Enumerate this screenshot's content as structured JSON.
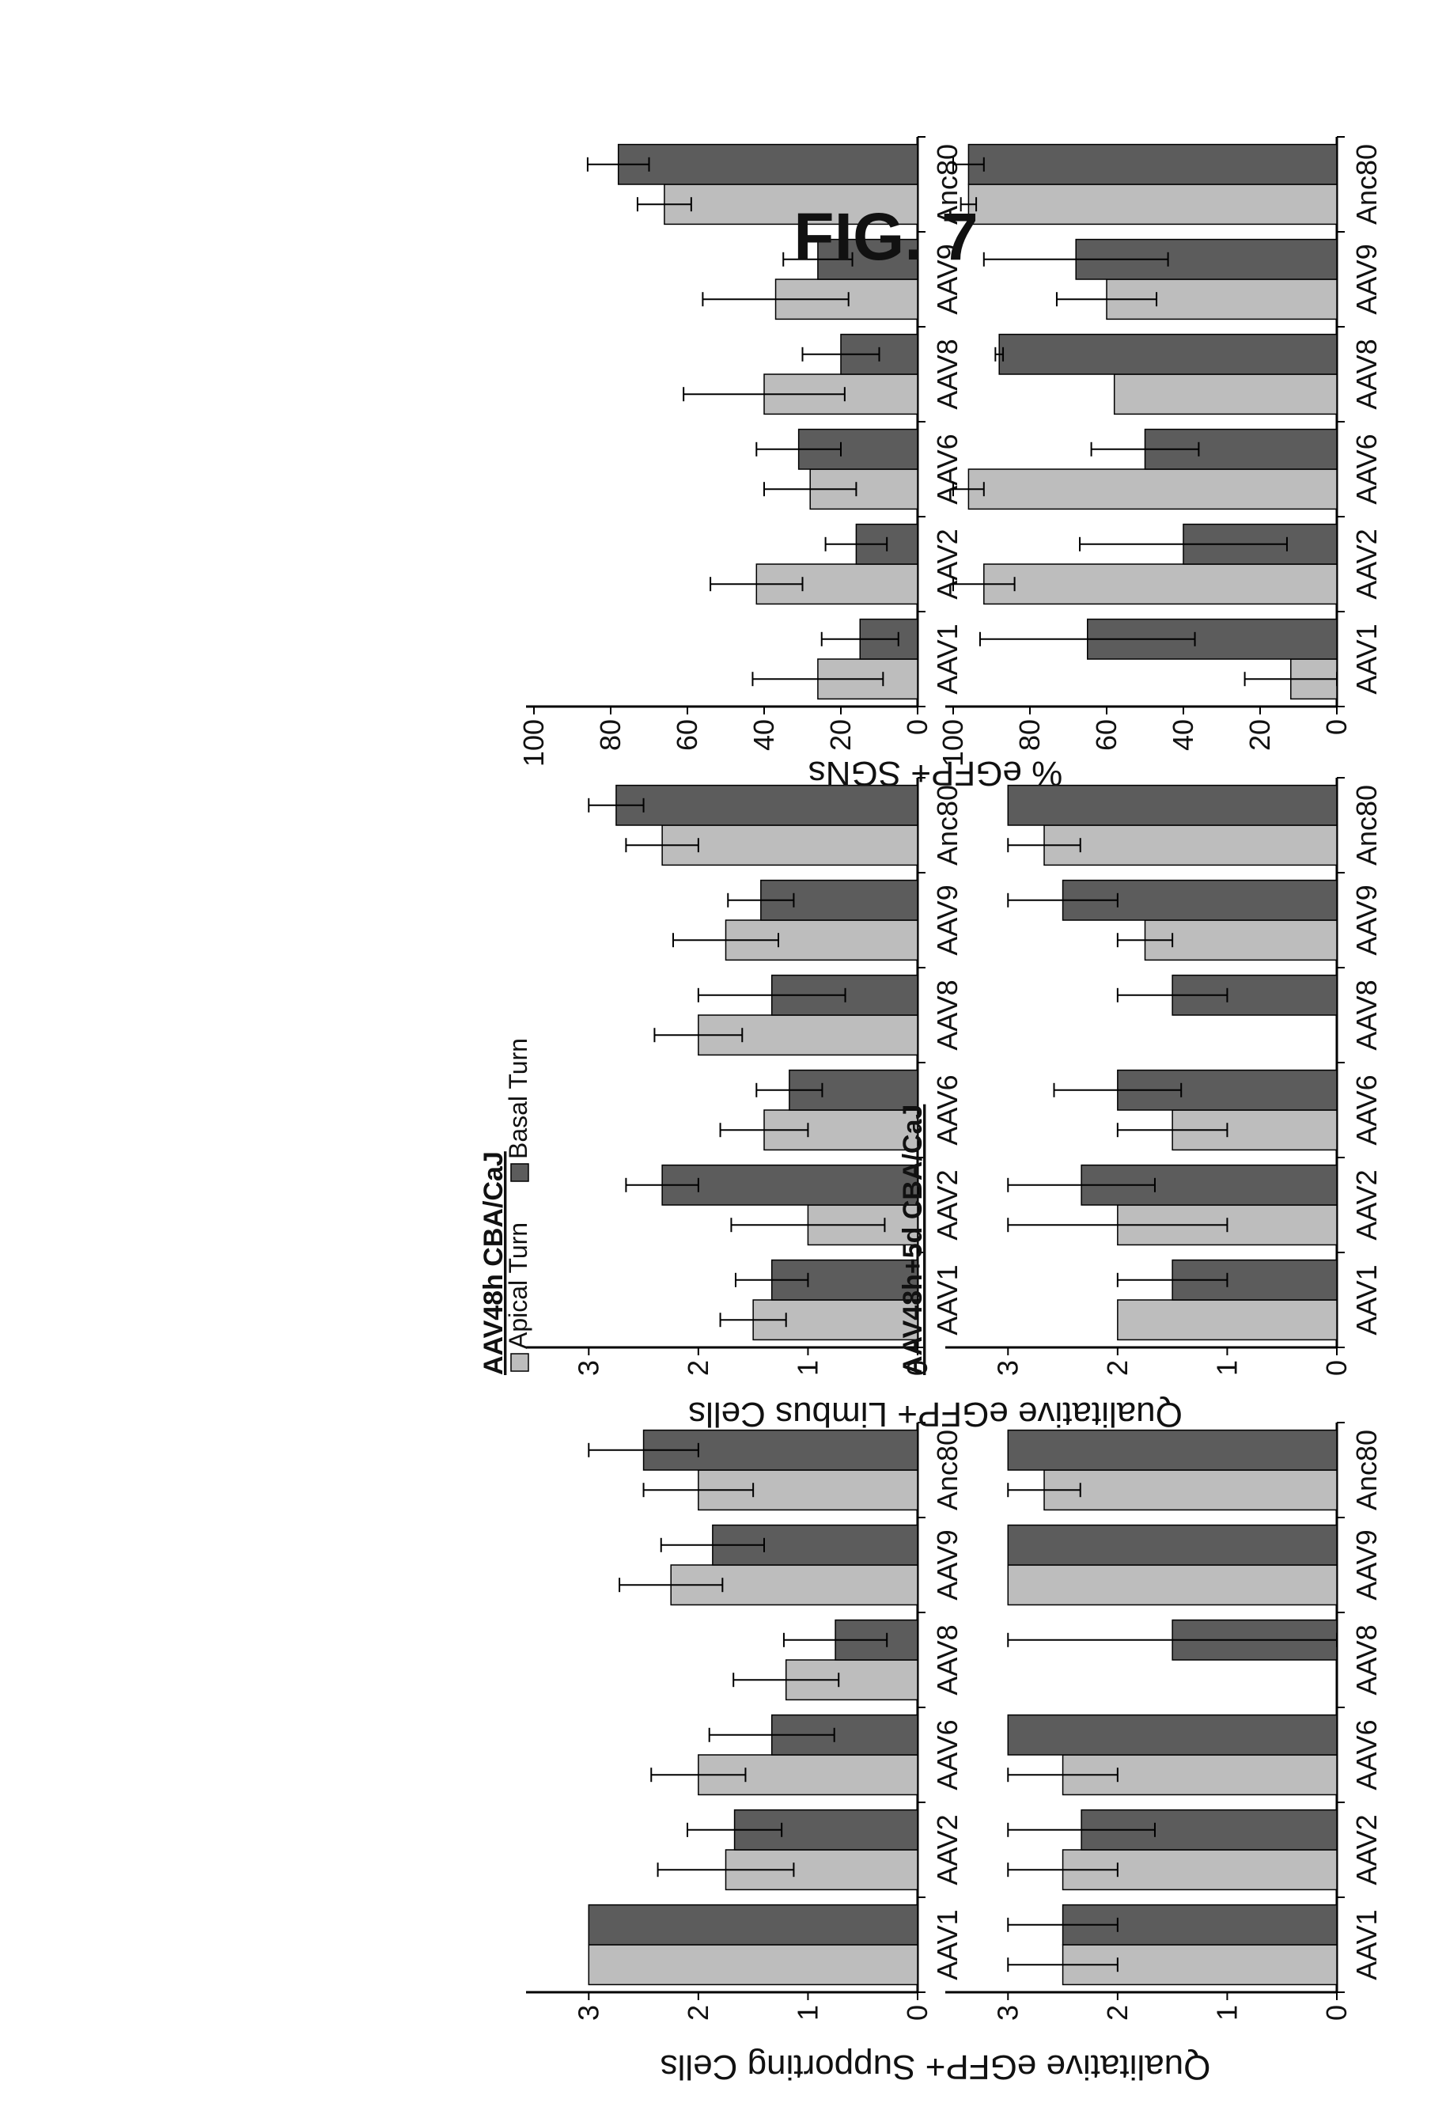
{
  "figure_label": "FIG. 7",
  "colors": {
    "apical": "#bdbdbd",
    "basal": "#5c5c5c",
    "axis": "#000000",
    "error": "#000000"
  },
  "legend": {
    "items": [
      {
        "key": "apical",
        "label": "Apical Turn"
      },
      {
        "key": "basal",
        "label": "Basal Turn"
      }
    ]
  },
  "y_labels": {
    "supporting": "Qualitative eGFP+ Supporting Cells",
    "limbus": "Qualitative eGFP+ Limbus Cells",
    "sgn": "% eGFP+ SGNs"
  },
  "chart_data": [
    {
      "id": "sc48h",
      "type": "bar",
      "row": "top",
      "group": "supporting",
      "title": "",
      "categories": [
        "AAV1",
        "AAV2",
        "AAV6",
        "AAV8",
        "AAV9",
        "Anc80"
      ],
      "ylim": [
        0,
        3.5
      ],
      "yticks": [
        0,
        1,
        2,
        3
      ],
      "series": [
        {
          "name": "Apical Turn",
          "key": "apical",
          "values": [
            3.0,
            1.75,
            2.0,
            1.2,
            2.25,
            2.0
          ],
          "errors": [
            0,
            0.62,
            0.43,
            0.48,
            0.47,
            0.5
          ]
        },
        {
          "name": "Basal Turn",
          "key": "basal",
          "values": [
            3.0,
            1.67,
            1.33,
            0.75,
            1.87,
            2.5
          ],
          "errors": [
            0,
            0.43,
            0.57,
            0.47,
            0.47,
            0.5
          ]
        }
      ]
    },
    {
      "id": "sc5d",
      "type": "bar",
      "row": "bottom",
      "group": "supporting",
      "title": "",
      "categories": [
        "AAV1",
        "AAV2",
        "AAV6",
        "AAV8",
        "AAV9",
        "Anc80"
      ],
      "ylim": [
        0,
        3.5
      ],
      "yticks": [
        0,
        1,
        2,
        3
      ],
      "series": [
        {
          "name": "Apical Turn",
          "key": "apical",
          "values": [
            2.5,
            2.5,
            2.5,
            0,
            3.0,
            2.67
          ],
          "errors": [
            0.5,
            0.5,
            0.5,
            0,
            0,
            0.33
          ]
        },
        {
          "name": "Basal Turn",
          "key": "basal",
          "values": [
            2.5,
            2.33,
            3.0,
            1.5,
            3.0,
            3.0
          ],
          "errors": [
            0.5,
            0.67,
            0,
            1.5,
            0,
            0
          ]
        }
      ]
    },
    {
      "id": "li48h",
      "type": "bar",
      "row": "top",
      "group": "limbus",
      "title": "AAV48h CBA/CaJ",
      "categories": [
        "AAV1",
        "AAV2",
        "AAV6",
        "AAV8",
        "AAV9",
        "Anc80"
      ],
      "ylim": [
        0,
        3.5
      ],
      "yticks": [
        0,
        1,
        2,
        3
      ],
      "series": [
        {
          "name": "Apical Turn",
          "key": "apical",
          "values": [
            1.5,
            1.0,
            1.4,
            2.0,
            1.75,
            2.33
          ],
          "errors": [
            0.3,
            0.7,
            0.4,
            0.4,
            0.48,
            0.33
          ]
        },
        {
          "name": "Basal Turn",
          "key": "basal",
          "values": [
            1.33,
            2.33,
            1.17,
            1.33,
            1.43,
            2.75
          ],
          "errors": [
            0.33,
            0.33,
            0.3,
            0.67,
            0.3,
            0.25
          ]
        }
      ]
    },
    {
      "id": "li5d",
      "type": "bar",
      "row": "bottom",
      "group": "limbus",
      "title": "AAV48h+5d CBA/CaJ",
      "categories": [
        "AAV1",
        "AAV2",
        "AAV6",
        "AAV8",
        "AAV9",
        "Anc80"
      ],
      "ylim": [
        0,
        3.5
      ],
      "yticks": [
        0,
        1,
        2,
        3
      ],
      "series": [
        {
          "name": "Apical Turn",
          "key": "apical",
          "values": [
            2.0,
            2.0,
            1.5,
            0,
            1.75,
            2.67
          ],
          "errors": [
            0,
            1.0,
            0.5,
            0,
            0.25,
            0.33
          ]
        },
        {
          "name": "Basal Turn",
          "key": "basal",
          "values": [
            1.5,
            2.33,
            2.0,
            1.5,
            2.5,
            3.0
          ],
          "errors": [
            0.5,
            0.67,
            0.58,
            0.5,
            0.5,
            0
          ]
        }
      ]
    },
    {
      "id": "sgn48h",
      "type": "bar",
      "row": "top",
      "group": "sgn",
      "title": "",
      "categories": [
        "AAV1",
        "AAV2",
        "AAV6",
        "AAV8",
        "AAV9",
        "Anc80"
      ],
      "ylim": [
        0,
        100
      ],
      "yticks": [
        0,
        20,
        40,
        60,
        80,
        100
      ],
      "series": [
        {
          "name": "Apical Turn",
          "key": "apical",
          "values": [
            26,
            42,
            28,
            40,
            37,
            66
          ],
          "errors": [
            17,
            12,
            12,
            21,
            19,
            7
          ]
        },
        {
          "name": "Basal Turn",
          "key": "basal",
          "values": [
            15,
            16,
            31,
            20,
            26,
            78
          ],
          "errors": [
            10,
            8,
            11,
            10,
            9,
            8
          ]
        }
      ]
    },
    {
      "id": "sgn5d",
      "type": "bar",
      "row": "bottom",
      "group": "sgn",
      "title": "",
      "categories": [
        "AAV1",
        "AAV2",
        "AAV6",
        "AAV8",
        "AAV9",
        "Anc80"
      ],
      "ylim": [
        0,
        100
      ],
      "yticks": [
        0,
        20,
        40,
        60,
        80,
        100
      ],
      "series": [
        {
          "name": "Apical Turn",
          "key": "apical",
          "values": [
            12,
            92,
            96,
            58,
            60,
            96
          ],
          "errors": [
            12,
            8,
            4,
            0,
            13,
            2
          ]
        },
        {
          "name": "Basal Turn",
          "key": "basal",
          "values": [
            65,
            40,
            50,
            88,
            68,
            96
          ],
          "errors": [
            28,
            27,
            14,
            1,
            24,
            4
          ]
        }
      ]
    }
  ]
}
